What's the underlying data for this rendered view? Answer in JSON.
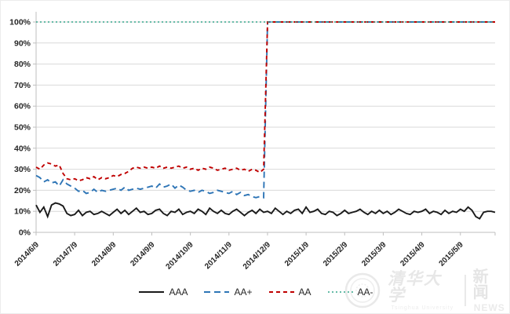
{
  "chart_data": {
    "type": "line",
    "title": "",
    "xlabel": "",
    "ylabel": "",
    "ylim": [
      0,
      100
    ],
    "y_unit": "%",
    "grid": "horizontal",
    "legend_position": "bottom",
    "y_tick_labels": [
      "0%",
      "10%",
      "20%",
      "30%",
      "40%",
      "50%",
      "60%",
      "70%",
      "80%",
      "90%",
      "100%"
    ],
    "x_tick_labels": [
      "2014/6/9",
      "2014/7/9",
      "2014/8/9",
      "2014/9/9",
      "2014/10/9",
      "2014/11/9",
      "2014/12/9",
      "2015/1/9",
      "2015/2/9",
      "2015/3/9",
      "2015/4/9",
      "2015/5/9"
    ],
    "points_per_month": 10,
    "start_date": "2014/6/9",
    "event_note": "AA and AA+ jump to 100% at 2014/12/9",
    "series": [
      {
        "name": "AAA",
        "color": "#1a1a1a",
        "style": "solid",
        "values": [
          13,
          9.5,
          12,
          7.5,
          13,
          14,
          13.5,
          12.5,
          9,
          8,
          8.5,
          10.5,
          8,
          9.5,
          10,
          8.5,
          9,
          10,
          9,
          8,
          9.5,
          11,
          9,
          10.5,
          8.5,
          10,
          11.5,
          9.5,
          10,
          8.5,
          9,
          10.5,
          11,
          9,
          8,
          10,
          9.5,
          11,
          8.5,
          9.5,
          10,
          9,
          11,
          10,
          8.5,
          11.5,
          10,
          9,
          10.5,
          9,
          8.5,
          10,
          11,
          9.5,
          8,
          9.5,
          10.5,
          9,
          11,
          9.5,
          10,
          9,
          11.5,
          10,
          8.5,
          10,
          9,
          10.5,
          11,
          9,
          12,
          9.5,
          10,
          11,
          9,
          8.5,
          10,
          9.5,
          8,
          9,
          10.5,
          9,
          9.5,
          10,
          11,
          9.5,
          8.5,
          10,
          9,
          10.5,
          9,
          10,
          8.5,
          9.5,
          11,
          10,
          9,
          8.5,
          10,
          9.5,
          10,
          11,
          9,
          10,
          9.5,
          8.5,
          10.5,
          9,
          10,
          9.5,
          11,
          10,
          12,
          10.5,
          7.5,
          6.5,
          9.5,
          10,
          10,
          9.5
        ]
      },
      {
        "name": "AA+",
        "color": "#2e75b6",
        "style": "dashed",
        "values": [
          27,
          26,
          24,
          25,
          23.5,
          24,
          22,
          25,
          23,
          22,
          21,
          19.5,
          20,
          18.5,
          19,
          20.5,
          19,
          20,
          19.5,
          20,
          20.5,
          21,
          20,
          21.5,
          20,
          20.5,
          21,
          20.5,
          21,
          21.5,
          22,
          21,
          23,
          21.5,
          22,
          23,
          21,
          22.5,
          21.5,
          20,
          19.5,
          20,
          19,
          20,
          19.5,
          18.5,
          19,
          20,
          19.5,
          19,
          18.5,
          19.5,
          18,
          19,
          17.5,
          18,
          17,
          16.5,
          17,
          16.5,
          100,
          100,
          100,
          100,
          100,
          100,
          100,
          100,
          100,
          100,
          100,
          100,
          100,
          100,
          100,
          100,
          100,
          100,
          100,
          100,
          100,
          100,
          100,
          100,
          100,
          100,
          100,
          100,
          100,
          100,
          100,
          100,
          100,
          100,
          100,
          100,
          100,
          100,
          100,
          100,
          100,
          100,
          100,
          100,
          100,
          100,
          100,
          100,
          100,
          100,
          100,
          100,
          100,
          100,
          100,
          100,
          100,
          100,
          100,
          100
        ]
      },
      {
        "name": "AA",
        "color": "#c00000",
        "style": "dashed-short",
        "values": [
          31,
          30,
          32,
          33,
          32.5,
          31.5,
          32,
          28,
          25.5,
          25,
          25.5,
          24.5,
          25,
          26,
          25.5,
          26.5,
          25,
          26,
          25.5,
          26,
          27,
          26.5,
          27.5,
          28,
          29,
          30.5,
          31,
          30.5,
          31,
          30.5,
          31,
          30.5,
          31.5,
          30.5,
          31,
          30.5,
          31,
          31.5,
          30.5,
          31,
          30,
          30.5,
          29.5,
          30.5,
          30,
          31,
          30.5,
          29.5,
          30,
          30.5,
          29.5,
          30,
          30.5,
          29.5,
          30,
          29,
          30,
          29.5,
          28.5,
          30,
          100,
          100,
          100,
          100,
          100,
          100,
          100,
          100,
          100,
          100,
          100,
          100,
          100,
          100,
          100,
          100,
          100,
          100,
          100,
          100,
          100,
          100,
          100,
          100,
          100,
          100,
          100,
          100,
          100,
          100,
          100,
          100,
          100,
          100,
          100,
          100,
          100,
          100,
          100,
          100,
          100,
          100,
          100,
          100,
          100,
          100,
          100,
          100,
          100,
          100,
          100,
          100,
          100,
          100,
          100,
          100,
          100,
          100,
          100,
          100
        ]
      },
      {
        "name": "AA-",
        "color": "#35a58c",
        "style": "dotted",
        "values": [
          100,
          100,
          100,
          100,
          100,
          100,
          100,
          100,
          100,
          100,
          100,
          100,
          100,
          100,
          100,
          100,
          100,
          100,
          100,
          100,
          100,
          100,
          100,
          100,
          100,
          100,
          100,
          100,
          100,
          100,
          100,
          100,
          100,
          100,
          100,
          100,
          100,
          100,
          100,
          100,
          100,
          100,
          100,
          100,
          100,
          100,
          100,
          100,
          100,
          100,
          100,
          100,
          100,
          100,
          100,
          100,
          100,
          100,
          100,
          100,
          100,
          100,
          100,
          100,
          100,
          100,
          100,
          100,
          100,
          100,
          100,
          100,
          100,
          100,
          100,
          100,
          100,
          100,
          100,
          100,
          100,
          100,
          100,
          100,
          100,
          100,
          100,
          100,
          100,
          100,
          100,
          100,
          100,
          100,
          100,
          100,
          100,
          100,
          100,
          100,
          100,
          100,
          100,
          100,
          100,
          100,
          100,
          100,
          100,
          100,
          100,
          100,
          100,
          100,
          100,
          100,
          100,
          100,
          100,
          100
        ]
      }
    ],
    "colors": {
      "gridline": "#d9d9d9",
      "axis": "#bfbfbf",
      "tick_label": "#262626"
    }
  },
  "watermark": {
    "university_cn": "清华大学",
    "university_en": "Tsinghua University",
    "news_cn": "新闻",
    "news_en": "NEWS"
  }
}
